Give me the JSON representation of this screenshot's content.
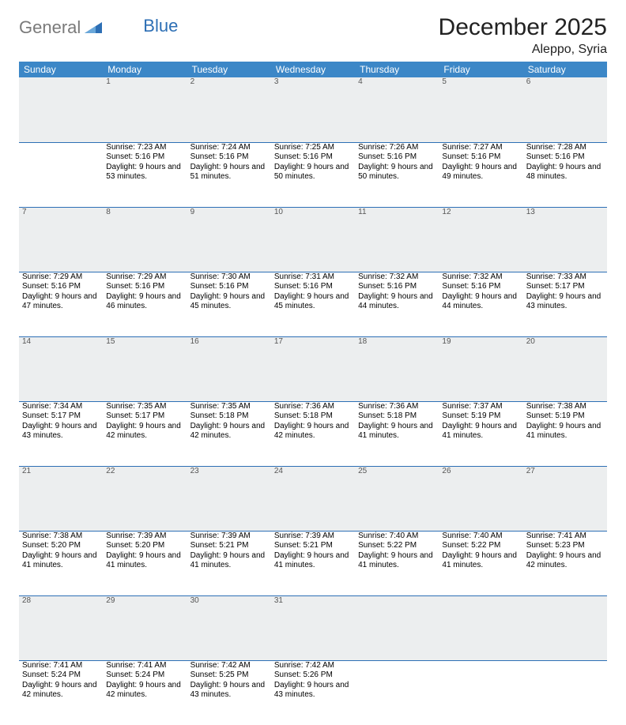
{
  "brand": {
    "part1": "General",
    "part2": "Blue"
  },
  "title": "December 2025",
  "location": "Aleppo, Syria",
  "colors": {
    "header_bg": "#3c87c7",
    "rule": "#2d6fb5",
    "daynum_bg": "#eceeef",
    "logo_gray": "#7a7a7a",
    "logo_blue": "#2d6fb5",
    "page_bg": "#ffffff",
    "text": "#000000"
  },
  "day_headers": [
    "Sunday",
    "Monday",
    "Tuesday",
    "Wednesday",
    "Thursday",
    "Friday",
    "Saturday"
  ],
  "weeks": [
    {
      "nums": [
        "",
        "1",
        "2",
        "3",
        "4",
        "5",
        "6"
      ],
      "cells": [
        null,
        {
          "sunrise": "7:23 AM",
          "sunset": "5:16 PM",
          "daylight": "9 hours and 53 minutes."
        },
        {
          "sunrise": "7:24 AM",
          "sunset": "5:16 PM",
          "daylight": "9 hours and 51 minutes."
        },
        {
          "sunrise": "7:25 AM",
          "sunset": "5:16 PM",
          "daylight": "9 hours and 50 minutes."
        },
        {
          "sunrise": "7:26 AM",
          "sunset": "5:16 PM",
          "daylight": "9 hours and 50 minutes."
        },
        {
          "sunrise": "7:27 AM",
          "sunset": "5:16 PM",
          "daylight": "9 hours and 49 minutes."
        },
        {
          "sunrise": "7:28 AM",
          "sunset": "5:16 PM",
          "daylight": "9 hours and 48 minutes."
        }
      ]
    },
    {
      "nums": [
        "7",
        "8",
        "9",
        "10",
        "11",
        "12",
        "13"
      ],
      "cells": [
        {
          "sunrise": "7:29 AM",
          "sunset": "5:16 PM",
          "daylight": "9 hours and 47 minutes."
        },
        {
          "sunrise": "7:29 AM",
          "sunset": "5:16 PM",
          "daylight": "9 hours and 46 minutes."
        },
        {
          "sunrise": "7:30 AM",
          "sunset": "5:16 PM",
          "daylight": "9 hours and 45 minutes."
        },
        {
          "sunrise": "7:31 AM",
          "sunset": "5:16 PM",
          "daylight": "9 hours and 45 minutes."
        },
        {
          "sunrise": "7:32 AM",
          "sunset": "5:16 PM",
          "daylight": "9 hours and 44 minutes."
        },
        {
          "sunrise": "7:32 AM",
          "sunset": "5:16 PM",
          "daylight": "9 hours and 44 minutes."
        },
        {
          "sunrise": "7:33 AM",
          "sunset": "5:17 PM",
          "daylight": "9 hours and 43 minutes."
        }
      ]
    },
    {
      "nums": [
        "14",
        "15",
        "16",
        "17",
        "18",
        "19",
        "20"
      ],
      "cells": [
        {
          "sunrise": "7:34 AM",
          "sunset": "5:17 PM",
          "daylight": "9 hours and 43 minutes."
        },
        {
          "sunrise": "7:35 AM",
          "sunset": "5:17 PM",
          "daylight": "9 hours and 42 minutes."
        },
        {
          "sunrise": "7:35 AM",
          "sunset": "5:18 PM",
          "daylight": "9 hours and 42 minutes."
        },
        {
          "sunrise": "7:36 AM",
          "sunset": "5:18 PM",
          "daylight": "9 hours and 42 minutes."
        },
        {
          "sunrise": "7:36 AM",
          "sunset": "5:18 PM",
          "daylight": "9 hours and 41 minutes."
        },
        {
          "sunrise": "7:37 AM",
          "sunset": "5:19 PM",
          "daylight": "9 hours and 41 minutes."
        },
        {
          "sunrise": "7:38 AM",
          "sunset": "5:19 PM",
          "daylight": "9 hours and 41 minutes."
        }
      ]
    },
    {
      "nums": [
        "21",
        "22",
        "23",
        "24",
        "25",
        "26",
        "27"
      ],
      "cells": [
        {
          "sunrise": "7:38 AM",
          "sunset": "5:20 PM",
          "daylight": "9 hours and 41 minutes."
        },
        {
          "sunrise": "7:39 AM",
          "sunset": "5:20 PM",
          "daylight": "9 hours and 41 minutes."
        },
        {
          "sunrise": "7:39 AM",
          "sunset": "5:21 PM",
          "daylight": "9 hours and 41 minutes."
        },
        {
          "sunrise": "7:39 AM",
          "sunset": "5:21 PM",
          "daylight": "9 hours and 41 minutes."
        },
        {
          "sunrise": "7:40 AM",
          "sunset": "5:22 PM",
          "daylight": "9 hours and 41 minutes."
        },
        {
          "sunrise": "7:40 AM",
          "sunset": "5:22 PM",
          "daylight": "9 hours and 41 minutes."
        },
        {
          "sunrise": "7:41 AM",
          "sunset": "5:23 PM",
          "daylight": "9 hours and 42 minutes."
        }
      ]
    },
    {
      "nums": [
        "28",
        "29",
        "30",
        "31",
        "",
        "",
        ""
      ],
      "cells": [
        {
          "sunrise": "7:41 AM",
          "sunset": "5:24 PM",
          "daylight": "9 hours and 42 minutes."
        },
        {
          "sunrise": "7:41 AM",
          "sunset": "5:24 PM",
          "daylight": "9 hours and 42 minutes."
        },
        {
          "sunrise": "7:42 AM",
          "sunset": "5:25 PM",
          "daylight": "9 hours and 43 minutes."
        },
        {
          "sunrise": "7:42 AM",
          "sunset": "5:26 PM",
          "daylight": "9 hours and 43 minutes."
        },
        null,
        null,
        null
      ]
    }
  ],
  "labels": {
    "sunrise": "Sunrise:",
    "sunset": "Sunset:",
    "daylight": "Daylight:"
  }
}
